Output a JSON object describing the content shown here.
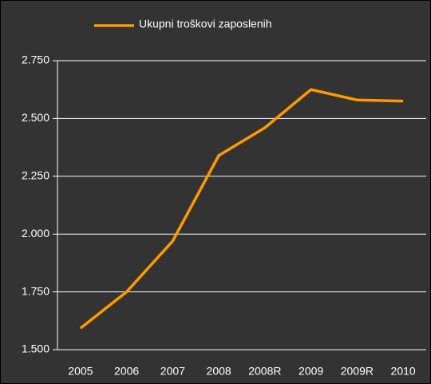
{
  "chart_data": {
    "type": "line",
    "categories": [
      "2005",
      "2006",
      "2007",
      "2008",
      "2008R",
      "2009",
      "2009R",
      "2010"
    ],
    "series": [
      {
        "name": "Ukupni troškovi zaposlenih",
        "color": "#ff9900",
        "values": [
          1593,
          1750,
          1970,
          2340,
          2460,
          2625,
          2580,
          2575
        ]
      }
    ],
    "ylim": [
      1500,
      2750
    ],
    "yticks": [
      {
        "value": 1500,
        "label": "1.500"
      },
      {
        "value": 1750,
        "label": "1.750"
      },
      {
        "value": 2000,
        "label": "2.000"
      },
      {
        "value": 2250,
        "label": "2.250"
      },
      {
        "value": 2500,
        "label": "2.500"
      },
      {
        "value": 2750,
        "label": "2.750"
      }
    ],
    "grid": true,
    "legend": "top"
  }
}
